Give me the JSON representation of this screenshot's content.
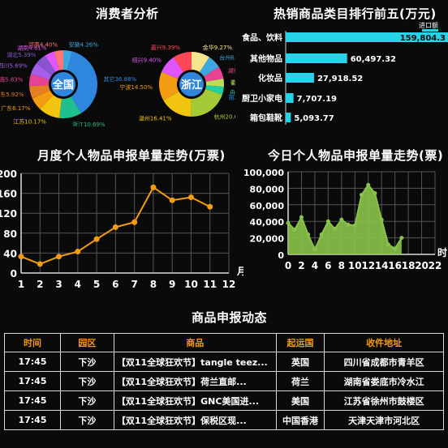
{
  "donut_title": "消费者分析",
  "ranking_title": "热销商品类目排行前五(万元)",
  "monthly_title": "月度个人物品申报单量走势(万票)",
  "daily_title": "今日个人物品申报单量走势(票)",
  "table_title": "商品申报动态",
  "chart_data": [
    {
      "type": "pie",
      "center_label": "全国",
      "slices": [
        {
          "label": "安徽4.26%",
          "value": 4.26,
          "color": "#3fa7e0"
        },
        {
          "label": "其它36.88%",
          "value": 36.88,
          "color": "#2e86de"
        },
        {
          "label": "浙江10.69%",
          "value": 10.69,
          "color": "#1fbf8f"
        },
        {
          "label": "江苏10.17%",
          "value": 10.17,
          "color": "#f1c40f"
        },
        {
          "label": "广东6.17%",
          "value": 6.17,
          "color": "#f39c12"
        },
        {
          "label": "山东5.92%",
          "value": 5.92,
          "color": "#e67e22"
        },
        {
          "label": "上海5.83%",
          "value": 5.83,
          "color": "#e84393"
        },
        {
          "label": "四川5.69%",
          "value": 5.69,
          "color": "#a55eea"
        },
        {
          "label": "湖北5.39%",
          "value": 5.39,
          "color": "#8854d0"
        },
        {
          "label": "湖南4.61%",
          "value": 4.61,
          "color": "#e056fd"
        },
        {
          "label": "河南4.40%",
          "value": 4.4,
          "color": "#ff7675"
        }
      ]
    },
    {
      "type": "pie",
      "center_label": "浙江",
      "slices": [
        {
          "label": "金华9.27%",
          "value": 9.27,
          "color": "#f6e58d"
        },
        {
          "label": "台州6.75%",
          "value": 6.75,
          "color": "#3fa7e0"
        },
        {
          "label": "湖州6.16%",
          "value": 6.16,
          "color": "#e84393"
        },
        {
          "label": "衢州4.04%",
          "value": 4.04,
          "color": "#badc58"
        },
        {
          "label": "舟山3.98%",
          "value": 3.98,
          "color": "#1dd1a1"
        },
        {
          "label": "丽水0.04%",
          "value": 0.04,
          "color": "#2e86de"
        },
        {
          "label": "杭州20.06%",
          "value": 20.06,
          "color": "#a3cb38"
        },
        {
          "label": "温州16.41%",
          "value": 16.41,
          "color": "#f1c40f"
        },
        {
          "label": "宁波14.50%",
          "value": 14.5,
          "color": "#f39c12"
        },
        {
          "label": "绍兴9.40%",
          "value": 9.4,
          "color": "#e056fd"
        },
        {
          "label": "嘉兴9.39%",
          "value": 9.39,
          "color": "#ff4757"
        }
      ]
    },
    {
      "type": "bar",
      "orientation": "horizontal",
      "series_name": "进口额",
      "categories": [
        "食品、饮料",
        "其他物品",
        "化妆品",
        "厨卫小家电",
        "箱包鞋靴"
      ],
      "values": [
        159804.3,
        60497.32,
        27918.52,
        7707.19,
        5093.77
      ],
      "value_labels": [
        "159,804.3",
        "60,497.32",
        "27,918.52",
        "7,707.19",
        "5,093.77"
      ],
      "color": "#27d3e8",
      "xlim": [
        0,
        159804.3
      ]
    },
    {
      "type": "line",
      "x": [
        1,
        2,
        3,
        4,
        5,
        6,
        7,
        8,
        9,
        10,
        11
      ],
      "y": [
        33,
        18,
        33,
        43,
        68,
        92,
        102,
        172,
        146,
        152,
        133
      ],
      "xticks": [
        "1",
        "2",
        "3",
        "4",
        "5",
        "6",
        "7",
        "8",
        "9",
        "10",
        "11",
        "12"
      ],
      "xlabel": "月",
      "yticks": [
        "0",
        "40",
        "80",
        "120",
        "160",
        "200"
      ],
      "ylim": [
        0,
        200
      ],
      "xlim": [
        1,
        12
      ],
      "color": "#f39c12",
      "grid": true
    },
    {
      "type": "area",
      "x": [
        0,
        1,
        2,
        3,
        4,
        5,
        6,
        7,
        8,
        9,
        10,
        11,
        12,
        13,
        14,
        15,
        16,
        17
      ],
      "y": [
        38000,
        30000,
        45000,
        24000,
        6000,
        24000,
        40000,
        31000,
        42000,
        36000,
        35000,
        72000,
        84000,
        74000,
        42000,
        12000,
        7000,
        20000
      ],
      "xticks": [
        "0",
        "2",
        "4",
        "6",
        "8",
        "10",
        "12",
        "14",
        "16",
        "18",
        "20",
        "22"
      ],
      "xlabel": "时",
      "yticks": [
        "0",
        "20,000",
        "40,000",
        "60,000",
        "80,000",
        "100,000"
      ],
      "ylim": [
        0,
        100000
      ],
      "xlim": [
        0,
        22
      ],
      "color": "#8bc34a",
      "grid": true
    },
    {
      "type": "table",
      "columns": [
        "时间",
        "园区",
        "商品",
        "起运国",
        "收件地址"
      ],
      "rows": [
        [
          "17:45",
          "下沙",
          "【双11全球狂欢节】tangle teez...",
          "英国",
          "四川省成都市青羊区"
        ],
        [
          "17:45",
          "下沙",
          "【双11全球狂欢节】荷兰直邮...",
          "荷兰",
          "湖南省娄底市冷水江"
        ],
        [
          "17:45",
          "下沙",
          "【双11全球狂欢节】GNC美国进...",
          "美国",
          "江苏省徐州市鼓楼区"
        ],
        [
          "17:45",
          "下沙",
          "【双11全球狂欢节】保税区现...",
          "中国香港",
          "天津天津市河北区"
        ]
      ]
    }
  ]
}
